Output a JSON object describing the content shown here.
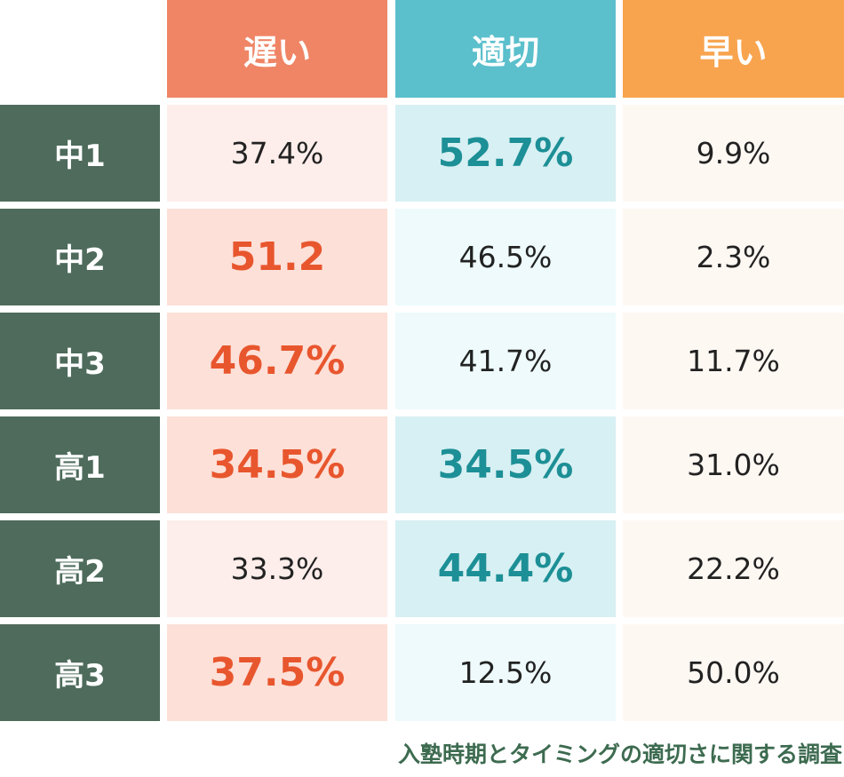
{
  "chart_data": {
    "type": "table",
    "columns": [
      {
        "label": "遅い",
        "header_color": "#ef8565"
      },
      {
        "label": "適切",
        "header_color": "#5bbfcc"
      },
      {
        "label": "早い",
        "header_color": "#f8a34e"
      }
    ],
    "rows": [
      {
        "label": "中1",
        "cells": [
          {
            "text": "37.4%",
            "highlight": false,
            "bg": "#fdeeeb"
          },
          {
            "text": "52.7%",
            "highlight": true,
            "bg": "#d7f0f3"
          },
          {
            "text": "9.9%",
            "highlight": false,
            "bg": "#fef8f3"
          }
        ]
      },
      {
        "label": "中2",
        "cells": [
          {
            "text": "51.2",
            "highlight": true,
            "bg": "#fde0d8"
          },
          {
            "text": "46.5%",
            "highlight": false,
            "bg": "#eefafb"
          },
          {
            "text": "2.3%",
            "highlight": false,
            "bg": "#fef8f3"
          }
        ]
      },
      {
        "label": "中3",
        "cells": [
          {
            "text": "46.7%",
            "highlight": true,
            "bg": "#fde0d8"
          },
          {
            "text": "41.7%",
            "highlight": false,
            "bg": "#eefafb"
          },
          {
            "text": "11.7%",
            "highlight": false,
            "bg": "#fef8f3"
          }
        ]
      },
      {
        "label": "高1",
        "cells": [
          {
            "text": "34.5%",
            "highlight": true,
            "bg": "#fde0d8"
          },
          {
            "text": "34.5%",
            "highlight": true,
            "bg": "#d7f0f3"
          },
          {
            "text": "31.0%",
            "highlight": false,
            "bg": "#fef8f3"
          }
        ]
      },
      {
        "label": "高2",
        "cells": [
          {
            "text": "33.3%",
            "highlight": false,
            "bg": "#fdeeeb"
          },
          {
            "text": "44.4%",
            "highlight": true,
            "bg": "#d7f0f3"
          },
          {
            "text": "22.2%",
            "highlight": false,
            "bg": "#fef8f3"
          }
        ]
      },
      {
        "label": "高3",
        "cells": [
          {
            "text": "37.5%",
            "highlight": true,
            "bg": "#fde0d8"
          },
          {
            "text": "12.5%",
            "highlight": false,
            "bg": "#eefafb"
          },
          {
            "text": "50.0%",
            "highlight": false,
            "bg": "#fef8f3"
          }
        ]
      }
    ],
    "caption": "入塾時期とタイミングの適切さに関する調査"
  },
  "colors": {
    "row_header": "#4e6b5c",
    "late_highlight_text": "#e8562e",
    "ok_highlight_text": "#1d8f96",
    "caption_text": "#3d6b50"
  }
}
